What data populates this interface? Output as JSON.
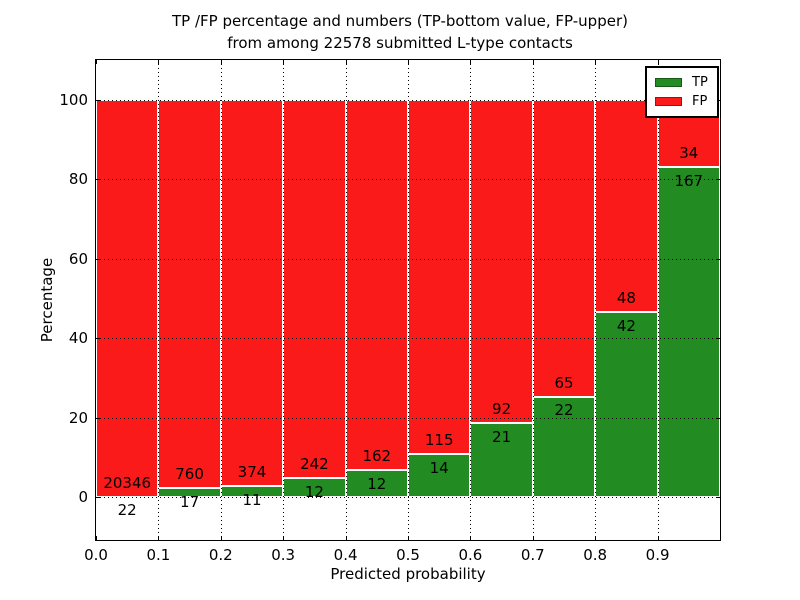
{
  "title": {
    "line1": "TP /FP percentage and numbers (TP-bottom value, FP-upper)",
    "line2": "from among 22578 submitted L-type contacts"
  },
  "axes": {
    "xlabel": "Predicted probability",
    "ylabel": "Percentage",
    "x_ticks": [
      "0.0",
      "0.1",
      "0.2",
      "0.3",
      "0.4",
      "0.5",
      "0.6",
      "0.7",
      "0.8",
      "0.9"
    ],
    "y_ticks": [
      0,
      20,
      40,
      60,
      80,
      100
    ]
  },
  "colors": {
    "tp": "#228B22",
    "fp": "#FB1A1A",
    "bar_edge": "#FFFFFF",
    "grid": "#000000",
    "background": "#FFFFFF"
  },
  "legend": {
    "items": [
      {
        "label": "TP",
        "color": "#228B22"
      },
      {
        "label": "FP",
        "color": "#FB1A1A"
      }
    ],
    "position": "upper right"
  },
  "chart_data": {
    "type": "bar",
    "stacked": true,
    "title": "TP /FP percentage and numbers (TP-bottom value, FP-upper) from among 22578 submitted L-type contacts",
    "xlabel": "Predicted probability",
    "ylabel": "Percentage",
    "total_contacts": 22578,
    "bin_width": 0.1,
    "categories": [
      "0.0-0.1",
      "0.1-0.2",
      "0.2-0.3",
      "0.3-0.4",
      "0.4-0.5",
      "0.5-0.6",
      "0.6-0.7",
      "0.7-0.8",
      "0.8-0.9",
      "0.9-1.0"
    ],
    "series": [
      {
        "name": "TP",
        "counts": [
          22,
          17,
          11,
          12,
          12,
          14,
          21,
          22,
          42,
          167
        ],
        "percent": [
          0.11,
          2.19,
          2.86,
          4.72,
          6.9,
          10.85,
          18.58,
          25.29,
          46.67,
          83.08
        ]
      },
      {
        "name": "FP",
        "counts": [
          20346,
          760,
          374,
          242,
          162,
          115,
          92,
          65,
          48,
          34
        ],
        "percent": [
          99.89,
          97.81,
          97.14,
          95.28,
          93.1,
          89.15,
          81.42,
          74.71,
          53.33,
          16.92
        ]
      }
    ],
    "xlim": [
      0.0,
      1.0
    ],
    "ylim": [
      -11,
      110
    ],
    "grid": "dotted",
    "legend_position": "upper right"
  }
}
